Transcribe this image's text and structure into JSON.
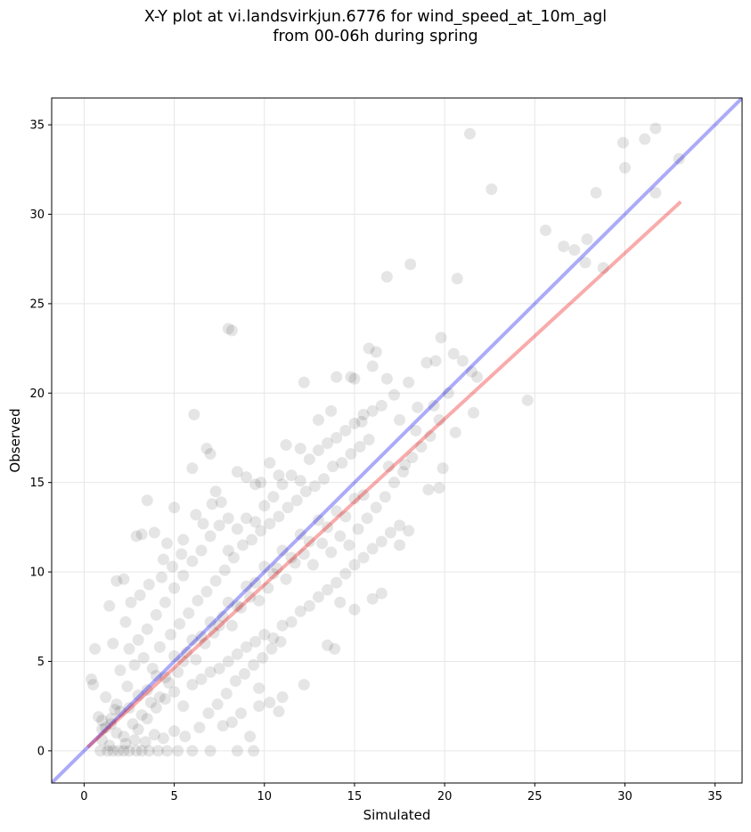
{
  "chart_data": {
    "type": "scatter",
    "title": "X-Y plot at vi.landsvirkjun.6776 for wind_speed_at_10m_agl",
    "subtitle": "from 00-06h during spring",
    "xlabel": "Simulated",
    "ylabel": "Observed",
    "xlim": [
      -1.8,
      36.5
    ],
    "ylim": [
      -1.8,
      36.5
    ],
    "xticks": [
      0,
      5,
      10,
      15,
      20,
      25,
      30,
      35
    ],
    "yticks": [
      0,
      5,
      10,
      15,
      20,
      25,
      30,
      35
    ],
    "grid": true,
    "colors": {
      "points": "#000000",
      "identity_line": "#0000ee",
      "fit_line": "#ee0000"
    },
    "series": [
      {
        "type": "scatter",
        "points": [
          [
            0.6,
            5.7
          ],
          [
            0.4,
            4.0
          ],
          [
            0.5,
            3.7
          ],
          [
            0.8,
            1.9
          ],
          [
            1.0,
            1.7
          ],
          [
            1.2,
            1.3
          ],
          [
            1.5,
            1.8
          ],
          [
            1.7,
            2.3
          ],
          [
            0.9,
            0.0
          ],
          [
            1.3,
            0.0
          ],
          [
            1.6,
            0.0
          ],
          [
            1.9,
            0.0
          ],
          [
            2.2,
            0.0
          ],
          [
            2.5,
            0.0
          ],
          [
            2.9,
            0.0
          ],
          [
            3.2,
            0.0
          ],
          [
            3.6,
            0.0
          ],
          [
            4.1,
            0.0
          ],
          [
            4.6,
            0.0
          ],
          [
            5.2,
            0.0
          ],
          [
            6.0,
            0.0
          ],
          [
            7.0,
            0.0
          ],
          [
            8.5,
            0.0
          ],
          [
            9.4,
            0.0
          ],
          [
            1.4,
            8.1
          ],
          [
            1.8,
            9.5
          ],
          [
            2.2,
            9.6
          ],
          [
            2.6,
            8.3
          ],
          [
            2.9,
            12.0
          ],
          [
            3.5,
            14.0
          ],
          [
            3.9,
            12.2
          ],
          [
            4.4,
            10.7
          ],
          [
            3.2,
            12.1
          ],
          [
            4.6,
            11.6
          ],
          [
            5.0,
            13.6
          ],
          [
            5.5,
            11.8
          ],
          [
            6.0,
            15.8
          ],
          [
            6.1,
            18.8
          ],
          [
            6.8,
            16.9
          ],
          [
            7.0,
            16.6
          ],
          [
            7.3,
            14.5
          ],
          [
            7.6,
            13.9
          ],
          [
            8.0,
            13.0
          ],
          [
            8.5,
            15.6
          ],
          [
            9.0,
            15.3
          ],
          [
            9.5,
            14.9
          ],
          [
            9.8,
            15.0
          ],
          [
            10.3,
            16.1
          ],
          [
            10.8,
            15.4
          ],
          [
            11.2,
            17.1
          ],
          [
            12.0,
            16.9
          ],
          [
            12.2,
            20.6
          ],
          [
            13.0,
            18.5
          ],
          [
            13.7,
            19.0
          ],
          [
            14.0,
            20.9
          ],
          [
            14.8,
            20.9
          ],
          [
            15.0,
            20.8
          ],
          [
            15.4,
            18.4
          ],
          [
            15.8,
            22.5
          ],
          [
            16.2,
            22.3
          ],
          [
            16.0,
            21.5
          ],
          [
            16.8,
            20.8
          ],
          [
            17.2,
            19.9
          ],
          [
            17.5,
            18.5
          ],
          [
            18.0,
            20.6
          ],
          [
            18.5,
            19.2
          ],
          [
            19.0,
            21.7
          ],
          [
            19.5,
            21.8
          ],
          [
            19.8,
            23.1
          ],
          [
            20.5,
            22.2
          ],
          [
            21.0,
            21.8
          ],
          [
            21.5,
            21.2
          ],
          [
            21.8,
            20.9
          ],
          [
            20.2,
            20.0
          ],
          [
            20.6,
            17.8
          ],
          [
            21.6,
            18.9
          ],
          [
            19.9,
            15.8
          ],
          [
            19.7,
            14.7
          ],
          [
            19.1,
            14.6
          ],
          [
            18.0,
            12.3
          ],
          [
            17.5,
            11.5
          ],
          [
            16.5,
            8.8
          ],
          [
            16.0,
            8.5
          ],
          [
            15.0,
            7.9
          ],
          [
            14.2,
            8.3
          ],
          [
            13.5,
            5.9
          ],
          [
            13.9,
            5.7
          ],
          [
            12.2,
            3.7
          ],
          [
            11.0,
            3.0
          ],
          [
            10.8,
            2.2
          ],
          [
            10.3,
            2.7
          ],
          [
            9.7,
            2.5
          ],
          [
            9.2,
            0.8
          ],
          [
            9.7,
            3.5
          ],
          [
            8.7,
            2.1
          ],
          [
            8.2,
            1.6
          ],
          [
            7.7,
            1.4
          ],
          [
            8.0,
            23.6
          ],
          [
            8.2,
            23.5
          ],
          [
            16.8,
            26.5
          ],
          [
            18.1,
            27.2
          ],
          [
            20.7,
            26.4
          ],
          [
            21.4,
            34.5
          ],
          [
            22.6,
            31.4
          ],
          [
            24.6,
            19.6
          ],
          [
            25.6,
            29.1
          ],
          [
            26.6,
            28.2
          ],
          [
            27.2,
            28.0
          ],
          [
            27.8,
            27.3
          ],
          [
            27.9,
            28.6
          ],
          [
            28.4,
            31.2
          ],
          [
            28.8,
            27.0
          ],
          [
            29.9,
            34.0
          ],
          [
            30.0,
            32.6
          ],
          [
            31.1,
            34.2
          ],
          [
            31.7,
            34.8
          ],
          [
            31.7,
            31.2
          ],
          [
            33.0,
            33.1
          ],
          [
            1.0,
            1.2
          ],
          [
            1.5,
            1.5
          ],
          [
            2.0,
            2.2
          ],
          [
            2.5,
            2.4
          ],
          [
            3.0,
            3.1
          ],
          [
            3.5,
            3.4
          ],
          [
            4.0,
            4.2
          ],
          [
            4.5,
            4.1
          ],
          [
            5.0,
            5.3
          ],
          [
            5.5,
            5.0
          ],
          [
            6.0,
            6.2
          ],
          [
            6.5,
            6.4
          ],
          [
            7.0,
            7.2
          ],
          [
            7.5,
            7.0
          ],
          [
            8.0,
            8.3
          ],
          [
            8.5,
            8.1
          ],
          [
            9.0,
            9.2
          ],
          [
            9.5,
            9.4
          ],
          [
            10.0,
            10.3
          ],
          [
            10.5,
            9.9
          ],
          [
            11.0,
            11.2
          ],
          [
            11.5,
            10.8
          ],
          [
            12.0,
            12.1
          ],
          [
            12.5,
            11.7
          ],
          [
            13.0,
            12.9
          ],
          [
            13.5,
            12.5
          ],
          [
            14.0,
            13.4
          ],
          [
            14.5,
            13.1
          ],
          [
            15.0,
            14.1
          ],
          [
            15.5,
            14.3
          ],
          [
            2.0,
            4.5
          ],
          [
            2.5,
            5.7
          ],
          [
            3.0,
            6.2
          ],
          [
            3.5,
            6.8
          ],
          [
            4.0,
            7.6
          ],
          [
            4.5,
            8.3
          ],
          [
            5.0,
            9.1
          ],
          [
            5.5,
            9.8
          ],
          [
            6.0,
            10.6
          ],
          [
            6.5,
            11.2
          ],
          [
            7.0,
            12.0
          ],
          [
            7.5,
            12.6
          ],
          [
            8.0,
            11.2
          ],
          [
            8.5,
            12.4
          ],
          [
            9.0,
            13.0
          ],
          [
            9.5,
            12.8
          ],
          [
            10.0,
            13.7
          ],
          [
            10.5,
            14.2
          ],
          [
            11.0,
            14.9
          ],
          [
            11.5,
            15.4
          ],
          [
            12.0,
            15.1
          ],
          [
            12.5,
            16.3
          ],
          [
            13.0,
            16.8
          ],
          [
            13.5,
            17.2
          ],
          [
            14.0,
            17.5
          ],
          [
            14.5,
            17.9
          ],
          [
            15.0,
            18.3
          ],
          [
            15.5,
            18.8
          ],
          [
            16.0,
            19.0
          ],
          [
            16.5,
            19.3
          ],
          [
            3.0,
            1.2
          ],
          [
            3.5,
            1.8
          ],
          [
            4.0,
            2.4
          ],
          [
            4.5,
            2.9
          ],
          [
            5.0,
            3.3
          ],
          [
            5.5,
            2.5
          ],
          [
            6.0,
            3.7
          ],
          [
            6.5,
            4.0
          ],
          [
            7.0,
            4.4
          ],
          [
            7.5,
            4.6
          ],
          [
            8.0,
            5.0
          ],
          [
            8.5,
            5.4
          ],
          [
            9.0,
            5.8
          ],
          [
            9.5,
            6.1
          ],
          [
            10.0,
            6.5
          ],
          [
            10.5,
            6.3
          ],
          [
            11.0,
            7.0
          ],
          [
            11.5,
            7.2
          ],
          [
            12.0,
            7.8
          ],
          [
            12.5,
            8.1
          ],
          [
            13.0,
            8.6
          ],
          [
            13.5,
            9.0
          ],
          [
            14.0,
            9.4
          ],
          [
            14.5,
            9.9
          ],
          [
            15.0,
            10.4
          ],
          [
            15.5,
            10.8
          ],
          [
            16.0,
            11.3
          ],
          [
            16.5,
            11.7
          ],
          [
            17.0,
            12.2
          ],
          [
            17.5,
            12.6
          ],
          [
            1.2,
            3.0
          ],
          [
            1.8,
            2.6
          ],
          [
            2.4,
            3.6
          ],
          [
            2.8,
            4.8
          ],
          [
            3.3,
            5.2
          ],
          [
            3.8,
            4.6
          ],
          [
            4.2,
            5.8
          ],
          [
            4.8,
            6.5
          ],
          [
            5.3,
            7.1
          ],
          [
            5.8,
            7.7
          ],
          [
            6.3,
            8.4
          ],
          [
            6.8,
            8.9
          ],
          [
            7.3,
            9.5
          ],
          [
            7.8,
            10.1
          ],
          [
            8.3,
            10.8
          ],
          [
            8.8,
            11.5
          ],
          [
            9.3,
            11.8
          ],
          [
            9.8,
            12.3
          ],
          [
            10.3,
            12.7
          ],
          [
            10.8,
            13.1
          ],
          [
            11.3,
            13.6
          ],
          [
            11.8,
            14.0
          ],
          [
            12.3,
            14.5
          ],
          [
            12.8,
            14.8
          ],
          [
            13.3,
            15.2
          ],
          [
            13.8,
            15.9
          ],
          [
            14.3,
            16.1
          ],
          [
            14.8,
            16.6
          ],
          [
            15.3,
            17.0
          ],
          [
            15.8,
            17.4
          ],
          [
            2.2,
            0.8
          ],
          [
            2.7,
            1.5
          ],
          [
            3.2,
            2.0
          ],
          [
            3.7,
            2.7
          ],
          [
            4.2,
            3.0
          ],
          [
            4.7,
            3.8
          ],
          [
            5.2,
            4.4
          ],
          [
            5.7,
            5.5
          ],
          [
            6.2,
            5.1
          ],
          [
            6.7,
            6.0
          ],
          [
            7.2,
            6.6
          ],
          [
            7.7,
            7.5
          ],
          [
            8.2,
            7.0
          ],
          [
            8.7,
            8.0
          ],
          [
            9.2,
            8.6
          ],
          [
            9.7,
            8.4
          ],
          [
            10.2,
            9.1
          ],
          [
            10.7,
            10.2
          ],
          [
            11.2,
            9.6
          ],
          [
            11.7,
            10.5
          ],
          [
            12.2,
            11.0
          ],
          [
            12.7,
            10.4
          ],
          [
            13.2,
            11.6
          ],
          [
            13.7,
            11.1
          ],
          [
            14.2,
            12.0
          ],
          [
            14.7,
            11.5
          ],
          [
            15.2,
            12.4
          ],
          [
            15.7,
            13.0
          ],
          [
            16.2,
            13.6
          ],
          [
            16.7,
            14.2
          ],
          [
            17.2,
            15.0
          ],
          [
            17.7,
            15.6
          ],
          [
            18.2,
            16.4
          ],
          [
            18.7,
            17.0
          ],
          [
            19.2,
            17.6
          ],
          [
            19.7,
            18.5
          ],
          [
            17.8,
            16.0
          ],
          [
            18.4,
            17.9
          ],
          [
            16.9,
            15.9
          ],
          [
            19.4,
            19.3
          ],
          [
            1.6,
            6.0
          ],
          [
            2.3,
            7.2
          ],
          [
            3.1,
            8.7
          ],
          [
            3.6,
            9.3
          ],
          [
            4.3,
            9.7
          ],
          [
            4.9,
            10.3
          ],
          [
            5.4,
            11.0
          ],
          [
            6.2,
            13.2
          ],
          [
            6.6,
            12.7
          ],
          [
            7.1,
            13.8
          ],
          [
            1.0,
            0.6
          ],
          [
            1.4,
            0.3
          ],
          [
            1.8,
            1.0
          ],
          [
            2.3,
            0.4
          ],
          [
            2.8,
            0.6
          ],
          [
            3.4,
            0.5
          ],
          [
            3.9,
            0.9
          ],
          [
            4.4,
            0.7
          ],
          [
            5.0,
            1.1
          ],
          [
            5.6,
            0.8
          ],
          [
            6.4,
            1.3
          ],
          [
            6.9,
            2.1
          ],
          [
            7.4,
            2.6
          ],
          [
            7.9,
            3.2
          ],
          [
            8.4,
            3.9
          ],
          [
            8.9,
            4.3
          ],
          [
            9.4,
            4.8
          ],
          [
            9.9,
            5.2
          ],
          [
            10.4,
            5.7
          ],
          [
            10.9,
            6.1
          ]
        ]
      },
      {
        "type": "line",
        "role": "identity",
        "points": [
          [
            -1.8,
            -1.8
          ],
          [
            36.5,
            36.5
          ]
        ]
      },
      {
        "type": "line",
        "role": "fit",
        "points": [
          [
            0.2,
            0.2
          ],
          [
            33.1,
            30.7
          ]
        ]
      }
    ]
  }
}
